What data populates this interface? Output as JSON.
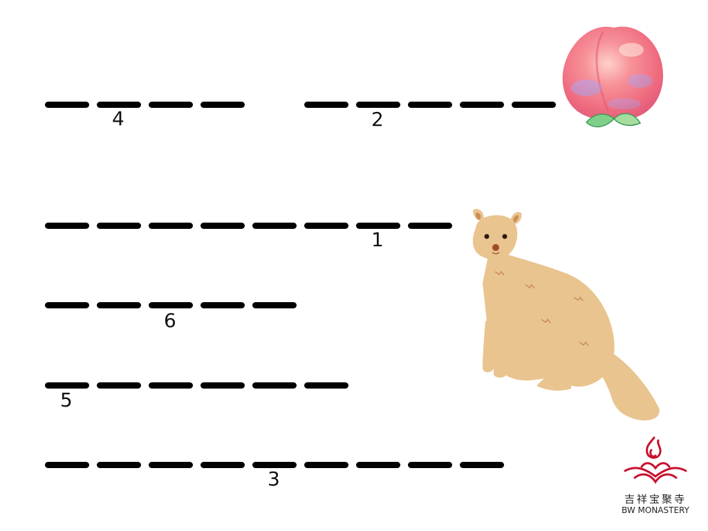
{
  "puzzle": {
    "rows": [
      {
        "id": "row-a-left",
        "blanks": 4,
        "marker": "4",
        "marker_after_blank": 2
      },
      {
        "id": "row-a-right",
        "blanks": 5,
        "marker": "2",
        "marker_after_blank": 2
      },
      {
        "id": "row-b",
        "blanks": 8,
        "marker": "1",
        "marker_after_blank": 7
      },
      {
        "id": "row-c",
        "blanks": 5,
        "marker": "6",
        "marker_after_blank": 3
      },
      {
        "id": "row-d",
        "blanks": 6,
        "marker": "5",
        "marker_after_blank": 1
      },
      {
        "id": "row-e",
        "blanks": 9,
        "marker": "3",
        "marker_after_blank": 5
      }
    ]
  },
  "illustrations": {
    "peach": "peach-illustration",
    "mongoose": "mongoose-illustration"
  },
  "logo": {
    "chinese": "吉祥宝聚寺",
    "english": "BW MONASTERY",
    "color": "#c8102e"
  },
  "colors": {
    "blank": "#000000",
    "mongoose": "#e9c48f",
    "peach": "#f4858a"
  }
}
